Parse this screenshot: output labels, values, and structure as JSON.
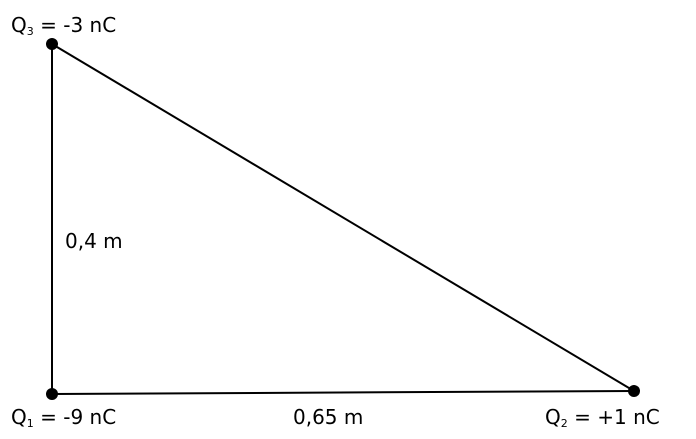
{
  "charges": {
    "q1": {
      "symbol": "Q",
      "index": "1",
      "value": "= -9 nC"
    },
    "q2": {
      "symbol": "Q",
      "index": "2",
      "value": "= +1 nC"
    },
    "q3": {
      "symbol": "Q",
      "index": "3",
      "value": "= -3 nC"
    }
  },
  "distances": {
    "vertical": "0,4 m",
    "horizontal": "0,65 m"
  },
  "colors": {
    "line": "#000000",
    "point": "#000000",
    "background": "#ffffff"
  }
}
